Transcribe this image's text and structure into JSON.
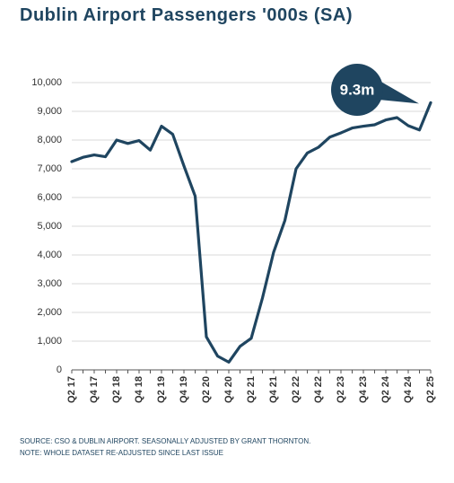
{
  "title": "Dublin Airport Passengers '000s (SA)",
  "colors": {
    "line": "#1f4560",
    "grid": "#d9d9d9",
    "callout": "#1f4560",
    "axis": "#555555"
  },
  "callout": {
    "label": "9.3m"
  },
  "notes": {
    "source": "SOURCE: CSO & DUBLIN AIRPORT. SEASONALLY ADJUSTED BY GRANT THORNTON.",
    "note": "NOTE: WHOLE DATASET RE-ADJUSTED SINCE LAST ISSUE"
  },
  "chart_data": {
    "type": "line",
    "title": "Dublin Airport Passengers '000s (SA)",
    "ylim": [
      0,
      10000
    ],
    "yticks": [
      0,
      1000,
      2000,
      3000,
      4000,
      5000,
      6000,
      7000,
      8000,
      9000,
      10000
    ],
    "ytick_labels": [
      "0",
      "1,000",
      "2,000",
      "3,000",
      "4,000",
      "5,000",
      "6,000",
      "7,000",
      "8,000",
      "9,000",
      "10,000"
    ],
    "grid": "horizontal",
    "tick_labels": [
      "Q2 17",
      "Q4 17",
      "Q2 18",
      "Q4 18",
      "Q2 19",
      "Q4 19",
      "Q2 20",
      "Q4 20",
      "Q2 21",
      "Q4 21",
      "Q2 22",
      "Q4 22",
      "Q2 23",
      "Q4 23",
      "Q2 24",
      "Q4 24",
      "Q2 25"
    ],
    "series": [
      {
        "x": [
          "Q2 17",
          "Q3 17",
          "Q4 17",
          "Q1 18",
          "Q2 18",
          "Q3 18",
          "Q4 18",
          "Q1 19",
          "Q2 19",
          "Q3 19",
          "Q4 19",
          "Q1 20",
          "Q2 20",
          "Q3 20",
          "Q4 20",
          "Q1 21",
          "Q2 21",
          "Q3 21",
          "Q4 21",
          "Q1 22",
          "Q2 22",
          "Q3 22",
          "Q4 22",
          "Q1 23",
          "Q2 23",
          "Q3 23",
          "Q4 23",
          "Q1 24",
          "Q2 24",
          "Q3 24",
          "Q4 24",
          "Q1 25",
          "Q2 25"
        ],
        "values": [
          7250,
          7400,
          7480,
          7420,
          8000,
          7880,
          7980,
          7650,
          8480,
          8200,
          7100,
          6050,
          1150,
          480,
          270,
          820,
          1100,
          2500,
          4100,
          5200,
          7000,
          7550,
          7750,
          8100,
          8250,
          8420,
          8480,
          8530,
          8700,
          8780,
          8500,
          8350,
          9300
        ]
      }
    ]
  }
}
